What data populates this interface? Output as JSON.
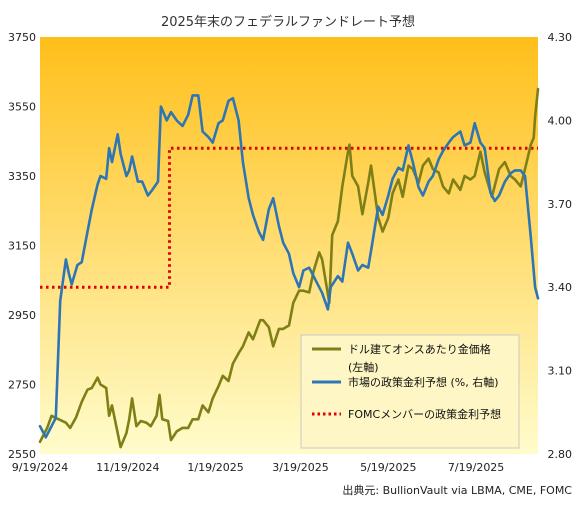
{
  "chart_data": {
    "type": "line",
    "title": "2025年末のフェデラルファンドレート予想",
    "source": "出典元: BullionVault  via LBMA, CME, FOMC",
    "x_tick_labels": [
      "9/19/2024",
      "11/19/2024",
      "1/19/2025",
      "3/19/2025",
      "5/19/2025",
      "7/19/2025"
    ],
    "x_range": [
      "2024-09-19",
      "2025-08-31"
    ],
    "y_left": {
      "range": [
        2550,
        3750
      ],
      "ticks": [
        2550,
        2750,
        2950,
        3150,
        3350,
        3550,
        3750
      ]
    },
    "y_right": {
      "range": [
        2.8,
        4.3
      ],
      "ticks": [
        "2.80",
        "3.10",
        "3.40",
        "3.70",
        "4.00",
        "4.30"
      ]
    },
    "grid": false,
    "legend_position": "lower-right",
    "colors": {
      "gold": "#7f7f17",
      "policy": "#2e75b6",
      "fomc": "#e00000",
      "bg_top": "#ffbf1a",
      "bg_bottom": "#fffccc"
    },
    "series": [
      {
        "name": "ドル建てオンスあたり金価格",
        "name_line2": "(左軸)",
        "axis": "left",
        "color": "#7f7f17",
        "points": [
          [
            "2024-09-19",
            2585
          ],
          [
            "2024-09-24",
            2625
          ],
          [
            "2024-09-27",
            2660
          ],
          [
            "2024-10-02",
            2650
          ],
          [
            "2024-10-07",
            2640
          ],
          [
            "2024-10-10",
            2625
          ],
          [
            "2024-10-14",
            2655
          ],
          [
            "2024-10-18",
            2700
          ],
          [
            "2024-10-22",
            2735
          ],
          [
            "2024-10-25",
            2740
          ],
          [
            "2024-10-29",
            2770
          ],
          [
            "2024-10-31",
            2750
          ],
          [
            "2024-11-04",
            2740
          ],
          [
            "2024-11-06",
            2660
          ],
          [
            "2024-11-08",
            2690
          ],
          [
            "2024-11-12",
            2610
          ],
          [
            "2024-11-14",
            2570
          ],
          [
            "2024-11-18",
            2610
          ],
          [
            "2024-11-20",
            2650
          ],
          [
            "2024-11-22",
            2710
          ],
          [
            "2024-11-25",
            2630
          ],
          [
            "2024-11-28",
            2645
          ],
          [
            "2024-12-02",
            2640
          ],
          [
            "2024-12-05",
            2630
          ],
          [
            "2024-12-09",
            2660
          ],
          [
            "2024-12-11",
            2720
          ],
          [
            "2024-12-13",
            2650
          ],
          [
            "2024-12-17",
            2645
          ],
          [
            "2024-12-19",
            2590
          ],
          [
            "2024-12-23",
            2615
          ],
          [
            "2024-12-27",
            2625
          ],
          [
            "2024-12-31",
            2625
          ],
          [
            "2025-01-03",
            2650
          ],
          [
            "2025-01-07",
            2650
          ],
          [
            "2025-01-10",
            2690
          ],
          [
            "2025-01-14",
            2670
          ],
          [
            "2025-01-17",
            2710
          ],
          [
            "2025-01-21",
            2745
          ],
          [
            "2025-01-24",
            2775
          ],
          [
            "2025-01-28",
            2760
          ],
          [
            "2025-01-31",
            2810
          ],
          [
            "2025-02-04",
            2840
          ],
          [
            "2025-02-07",
            2860
          ],
          [
            "2025-02-11",
            2900
          ],
          [
            "2025-02-14",
            2880
          ],
          [
            "2025-02-19",
            2935
          ],
          [
            "2025-02-21",
            2935
          ],
          [
            "2025-02-25",
            2915
          ],
          [
            "2025-02-28",
            2860
          ],
          [
            "2025-03-04",
            2910
          ],
          [
            "2025-03-07",
            2910
          ],
          [
            "2025-03-11",
            2920
          ],
          [
            "2025-03-14",
            2985
          ],
          [
            "2025-03-18",
            3020
          ],
          [
            "2025-03-21",
            3020
          ],
          [
            "2025-03-25",
            3015
          ],
          [
            "2025-03-28",
            3075
          ],
          [
            "2025-04-01",
            3130
          ],
          [
            "2025-04-03",
            3110
          ],
          [
            "2025-04-08",
            2985
          ],
          [
            "2025-04-10",
            3180
          ],
          [
            "2025-04-14",
            3220
          ],
          [
            "2025-04-17",
            3320
          ],
          [
            "2025-04-21",
            3420
          ],
          [
            "2025-04-22",
            3440
          ],
          [
            "2025-04-24",
            3350
          ],
          [
            "2025-04-28",
            3320
          ],
          [
            "2025-05-01",
            3240
          ],
          [
            "2025-05-05",
            3330
          ],
          [
            "2025-05-07",
            3380
          ],
          [
            "2025-05-12",
            3230
          ],
          [
            "2025-05-15",
            3190
          ],
          [
            "2025-05-19",
            3230
          ],
          [
            "2025-05-22",
            3300
          ],
          [
            "2025-05-26",
            3340
          ],
          [
            "2025-05-29",
            3290
          ],
          [
            "2025-06-02",
            3380
          ],
          [
            "2025-06-05",
            3370
          ],
          [
            "2025-06-09",
            3330
          ],
          [
            "2025-06-12",
            3380
          ],
          [
            "2025-06-16",
            3400
          ],
          [
            "2025-06-19",
            3370
          ],
          [
            "2025-06-23",
            3360
          ],
          [
            "2025-06-26",
            3320
          ],
          [
            "2025-06-30",
            3300
          ],
          [
            "2025-07-03",
            3340
          ],
          [
            "2025-07-08",
            3310
          ],
          [
            "2025-07-11",
            3350
          ],
          [
            "2025-07-15",
            3340
          ],
          [
            "2025-07-18",
            3350
          ],
          [
            "2025-07-22",
            3420
          ],
          [
            "2025-07-25",
            3360
          ],
          [
            "2025-07-30",
            3290
          ],
          [
            "2025-08-04",
            3370
          ],
          [
            "2025-08-08",
            3390
          ],
          [
            "2025-08-12",
            3350
          ],
          [
            "2025-08-15",
            3340
          ],
          [
            "2025-08-19",
            3320
          ],
          [
            "2025-08-22",
            3370
          ],
          [
            "2025-08-26",
            3440
          ],
          [
            "2025-08-28",
            3460
          ],
          [
            "2025-08-29",
            3520
          ],
          [
            "2025-08-31",
            3600
          ]
        ]
      },
      {
        "name": "市場の政策金利予想 (%, 右軸)",
        "axis": "right",
        "color": "#2e75b6",
        "points": [
          [
            "2024-09-19",
            2.9
          ],
          [
            "2024-09-23",
            2.86
          ],
          [
            "2024-09-26",
            2.89
          ],
          [
            "2024-09-30",
            2.93
          ],
          [
            "2024-10-03",
            3.35
          ],
          [
            "2024-10-07",
            3.5
          ],
          [
            "2024-10-09",
            3.45
          ],
          [
            "2024-10-11",
            3.41
          ],
          [
            "2024-10-15",
            3.48
          ],
          [
            "2024-10-18",
            3.49
          ],
          [
            "2024-10-22",
            3.6
          ],
          [
            "2024-10-25",
            3.68
          ],
          [
            "2024-10-29",
            3.77
          ],
          [
            "2024-10-31",
            3.8
          ],
          [
            "2024-11-04",
            3.79
          ],
          [
            "2024-11-06",
            3.9
          ],
          [
            "2024-11-08",
            3.85
          ],
          [
            "2024-11-12",
            3.95
          ],
          [
            "2024-11-14",
            3.88
          ],
          [
            "2024-11-18",
            3.8
          ],
          [
            "2024-11-20",
            3.82
          ],
          [
            "2024-11-22",
            3.87
          ],
          [
            "2024-11-26",
            3.78
          ],
          [
            "2024-11-29",
            3.78
          ],
          [
            "2024-12-03",
            3.73
          ],
          [
            "2024-12-06",
            3.75
          ],
          [
            "2024-12-10",
            3.78
          ],
          [
            "2024-12-12",
            4.05
          ],
          [
            "2024-12-16",
            4.0
          ],
          [
            "2024-12-19",
            4.03
          ],
          [
            "2024-12-23",
            4.0
          ],
          [
            "2024-12-27",
            3.98
          ],
          [
            "2024-12-31",
            4.02
          ],
          [
            "2025-01-03",
            4.09
          ],
          [
            "2025-01-07",
            4.09
          ],
          [
            "2025-01-10",
            3.96
          ],
          [
            "2025-01-14",
            3.94
          ],
          [
            "2025-01-17",
            3.92
          ],
          [
            "2025-01-21",
            3.99
          ],
          [
            "2025-01-24",
            4.0
          ],
          [
            "2025-01-28",
            4.07
          ],
          [
            "2025-01-31",
            4.08
          ],
          [
            "2025-02-04",
            4.0
          ],
          [
            "2025-02-07",
            3.85
          ],
          [
            "2025-02-11",
            3.72
          ],
          [
            "2025-02-14",
            3.66
          ],
          [
            "2025-02-18",
            3.6
          ],
          [
            "2025-02-21",
            3.57
          ],
          [
            "2025-02-25",
            3.68
          ],
          [
            "2025-02-28",
            3.72
          ],
          [
            "2025-03-04",
            3.62
          ],
          [
            "2025-03-07",
            3.56
          ],
          [
            "2025-03-11",
            3.52
          ],
          [
            "2025-03-14",
            3.45
          ],
          [
            "2025-03-18",
            3.4
          ],
          [
            "2025-03-21",
            3.46
          ],
          [
            "2025-03-25",
            3.47
          ],
          [
            "2025-03-28",
            3.44
          ],
          [
            "2025-04-01",
            3.4
          ],
          [
            "2025-04-03",
            3.38
          ],
          [
            "2025-04-07",
            3.32
          ],
          [
            "2025-04-09",
            3.4
          ],
          [
            "2025-04-14",
            3.44
          ],
          [
            "2025-04-17",
            3.42
          ],
          [
            "2025-04-21",
            3.56
          ],
          [
            "2025-04-24",
            3.52
          ],
          [
            "2025-04-28",
            3.46
          ],
          [
            "2025-05-01",
            3.48
          ],
          [
            "2025-05-05",
            3.47
          ],
          [
            "2025-05-07",
            3.53
          ],
          [
            "2025-05-12",
            3.69
          ],
          [
            "2025-05-15",
            3.66
          ],
          [
            "2025-05-19",
            3.73
          ],
          [
            "2025-05-22",
            3.79
          ],
          [
            "2025-05-26",
            3.83
          ],
          [
            "2025-05-29",
            3.82
          ],
          [
            "2025-06-02",
            3.91
          ],
          [
            "2025-06-05",
            3.85
          ],
          [
            "2025-06-09",
            3.76
          ],
          [
            "2025-06-12",
            3.73
          ],
          [
            "2025-06-16",
            3.78
          ],
          [
            "2025-06-19",
            3.8
          ],
          [
            "2025-06-23",
            3.86
          ],
          [
            "2025-06-26",
            3.89
          ],
          [
            "2025-06-30",
            3.92
          ],
          [
            "2025-07-03",
            3.94
          ],
          [
            "2025-07-08",
            3.96
          ],
          [
            "2025-07-11",
            3.91
          ],
          [
            "2025-07-15",
            3.92
          ],
          [
            "2025-07-18",
            3.99
          ],
          [
            "2025-07-22",
            3.92
          ],
          [
            "2025-07-25",
            3.9
          ],
          [
            "2025-07-29",
            3.74
          ],
          [
            "2025-08-01",
            3.71
          ],
          [
            "2025-08-04",
            3.73
          ],
          [
            "2025-08-08",
            3.78
          ],
          [
            "2025-08-12",
            3.81
          ],
          [
            "2025-08-15",
            3.82
          ],
          [
            "2025-08-19",
            3.82
          ],
          [
            "2025-08-22",
            3.8
          ],
          [
            "2025-08-26",
            3.58
          ],
          [
            "2025-08-29",
            3.4
          ],
          [
            "2025-08-31",
            3.36
          ]
        ]
      },
      {
        "name": "FOMCメンバーの政策金利予想",
        "axis": "right",
        "color": "#e00000",
        "style": "dotted-step",
        "points": [
          [
            "2024-09-19",
            3.4
          ],
          [
            "2024-12-18",
            3.4
          ],
          [
            "2024-12-18",
            3.9
          ],
          [
            "2025-08-31",
            3.9
          ]
        ]
      }
    ]
  }
}
